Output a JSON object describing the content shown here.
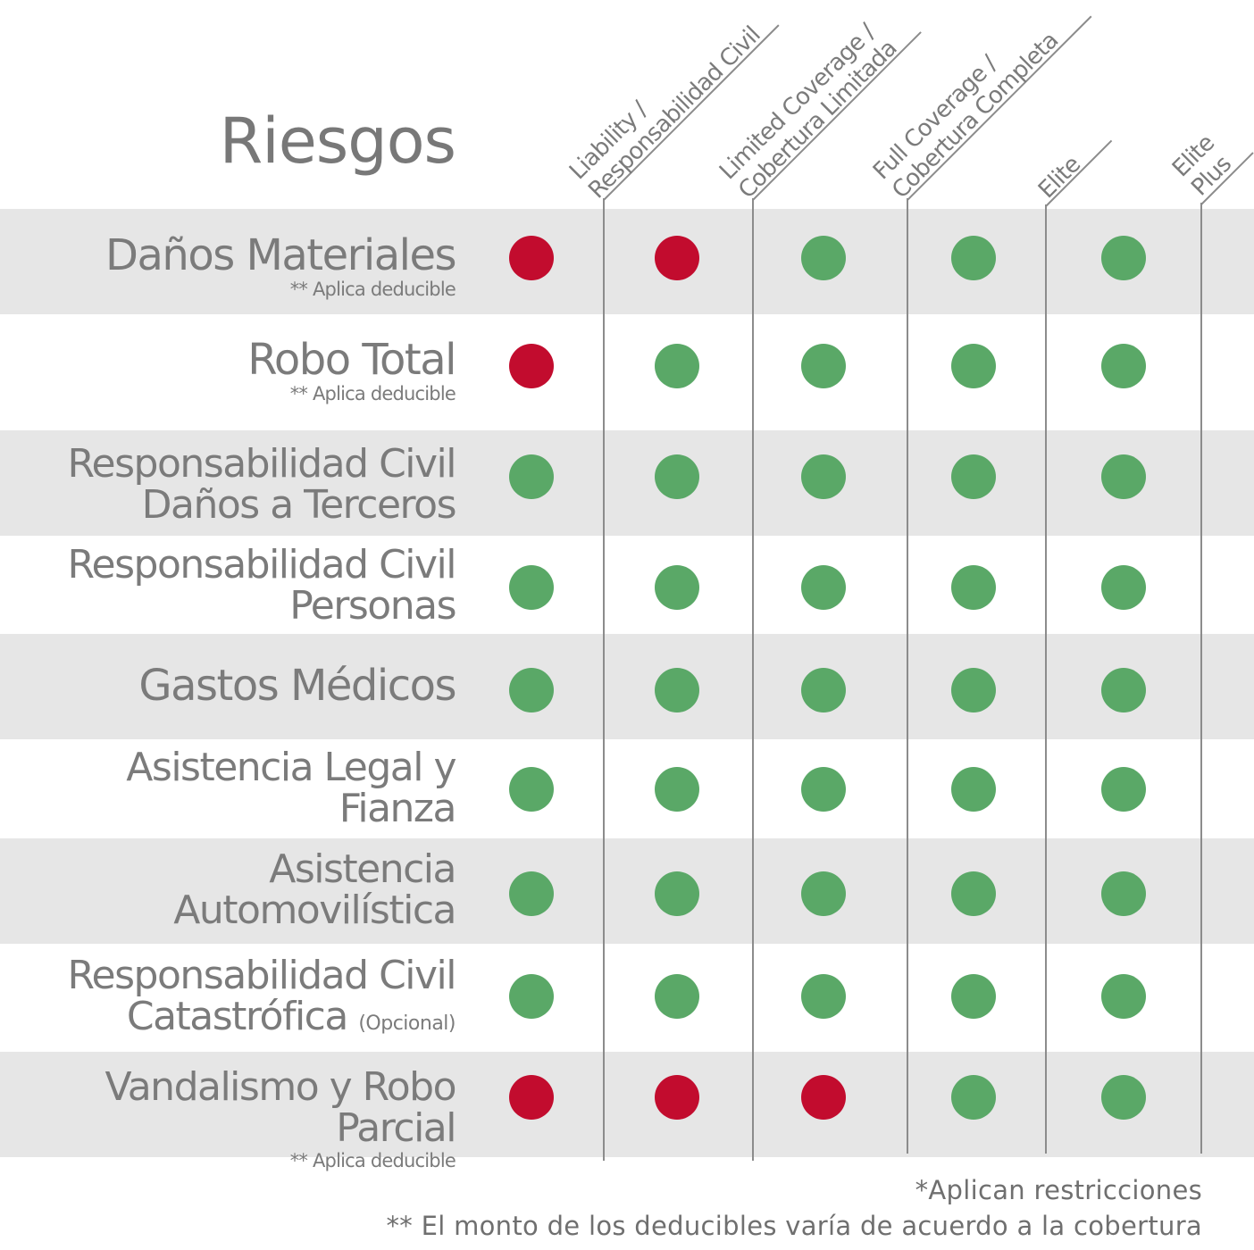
{
  "title": "Riesgos",
  "columns": [
    {
      "lines": [
        "Liability /",
        "Responsabilidad Civil"
      ]
    },
    {
      "lines": [
        "Limited Coverage /",
        "Cobertura Limitada"
      ]
    },
    {
      "lines": [
        "Full Coverage /",
        "Cobertura Completa"
      ]
    },
    {
      "lines": [
        "Elite"
      ]
    },
    {
      "lines": [
        "Elite",
        "Plus"
      ]
    }
  ],
  "rows": [
    {
      "label": "Daños Materiales",
      "note": "** Aplica deducible",
      "inline_note": "",
      "coverage": [
        false,
        false,
        true,
        true,
        true
      ]
    },
    {
      "label": "Robo Total",
      "note": "** Aplica deducible",
      "inline_note": "",
      "coverage": [
        false,
        true,
        true,
        true,
        true
      ]
    },
    {
      "label": "Responsabilidad Civil\nDaños a Terceros",
      "note": "",
      "inline_note": "",
      "coverage": [
        true,
        true,
        true,
        true,
        true
      ]
    },
    {
      "label": "Responsabilidad Civil\nPersonas",
      "note": "",
      "inline_note": "",
      "coverage": [
        true,
        true,
        true,
        true,
        true
      ]
    },
    {
      "label": "Gastos Médicos",
      "note": "",
      "inline_note": "",
      "coverage": [
        true,
        true,
        true,
        true,
        true
      ]
    },
    {
      "label": "Asistencia Legal y\nFianza",
      "note": "",
      "inline_note": "",
      "coverage": [
        true,
        true,
        true,
        true,
        true
      ]
    },
    {
      "label": "Asistencia\nAutomovilística",
      "note": "",
      "inline_note": "",
      "coverage": [
        true,
        true,
        true,
        true,
        true
      ]
    },
    {
      "label": "Responsabilidad Civil\nCatastrófica",
      "note": "",
      "inline_note": "(Opcional)",
      "coverage": [
        true,
        true,
        true,
        true,
        true
      ]
    },
    {
      "label": "Vandalismo y Robo Parcial",
      "note": "** Aplica deducible",
      "inline_note": "",
      "coverage": [
        false,
        false,
        false,
        true,
        true
      ]
    }
  ],
  "footer": {
    "line1": "*Aplican restricciones",
    "line2": "** El monto de los deducibles varía de acuerdo a la cobertura"
  },
  "colors": {
    "covered": "#5aa867",
    "not_covered": "#c20c2e",
    "band": "#e6e6e6",
    "text": "#7b7b7b"
  }
}
